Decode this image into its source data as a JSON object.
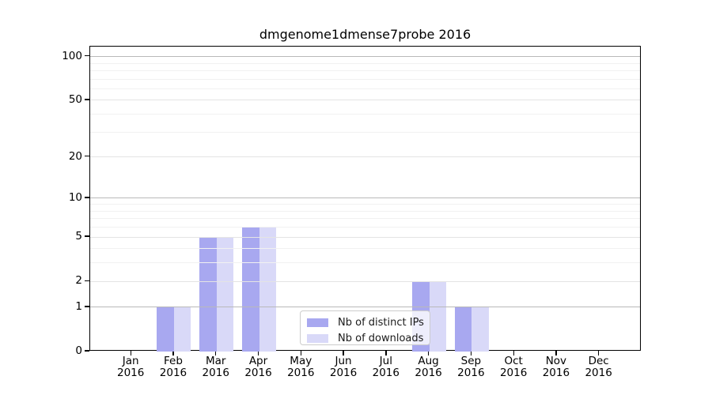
{
  "chart_data": {
    "type": "bar",
    "title": "dmgenome1dmense7probe 2016",
    "categories": [
      "Jan",
      "Feb",
      "Mar",
      "Apr",
      "May",
      "Jun",
      "Jul",
      "Aug",
      "Sep",
      "Oct",
      "Nov",
      "Dec"
    ],
    "year": "2016",
    "series": [
      {
        "name": "Nb of distinct IPs",
        "color": "#a8a8f0",
        "values": [
          0,
          1,
          5,
          6,
          0,
          0,
          0,
          2,
          1,
          0,
          0,
          0
        ]
      },
      {
        "name": "Nb of downloads",
        "color": "#d9d9f8",
        "values": [
          0,
          1,
          5,
          6,
          0,
          0,
          0,
          2,
          1,
          0,
          0,
          0
        ]
      }
    ],
    "y_scale": "log1p",
    "ylim": [
      0,
      117
    ],
    "y_ticks": [
      0,
      1,
      2,
      5,
      10,
      20,
      50,
      100
    ],
    "y_decade_gridlines": [
      1,
      10,
      100
    ],
    "y_major_gridlines": [
      2,
      5,
      20,
      50
    ],
    "y_minor_gridlines": [
      3,
      4,
      6,
      7,
      8,
      9,
      30,
      40,
      60,
      70,
      80,
      90
    ],
    "grid": true,
    "legend_position": "lower center, overlapping Aug bars",
    "xlabel": "",
    "ylabel": ""
  }
}
